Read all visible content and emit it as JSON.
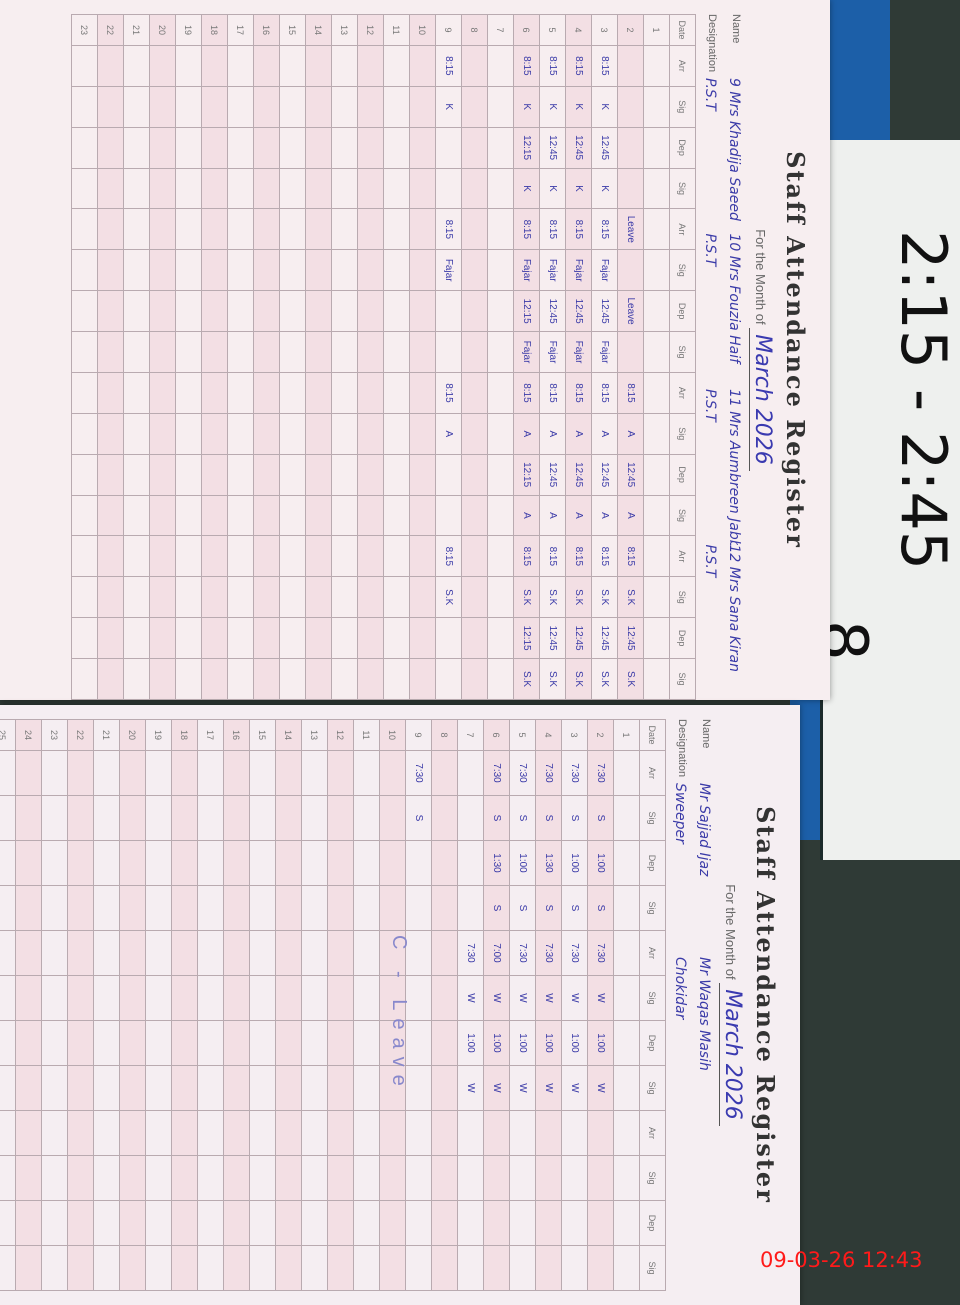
{
  "background_card": {
    "time_range": "2:15 - 2:45",
    "number": "8"
  },
  "timestamp": "09-03-26 12:43",
  "left_page": {
    "title": "Staff Attendance Register",
    "month_label": "For the Month of",
    "month_value": "March 2026",
    "name_label": "Name",
    "designation_label": "Designation",
    "staff": [
      {
        "no": "9",
        "name": "Mrs Khadija Saeed",
        "designation": "P.S.T"
      },
      {
        "no": "10",
        "name": "Mrs Fouzia Haif",
        "designation": "P.S.T"
      },
      {
        "no": "11",
        "name": "Mrs Aumbreen Jabbar",
        "designation": "P.S.T"
      },
      {
        "no": "12",
        "name": "Mrs Sana Kiran",
        "designation": "P.S.T"
      }
    ],
    "headers": [
      "Date",
      "Arr",
      "Sig",
      "Dep",
      "Sig",
      "Arr",
      "Sig",
      "Dep",
      "Sig",
      "Arr",
      "Sig",
      "Dep",
      "Sig",
      "Arr",
      "Sig",
      "Dep",
      "Sig"
    ],
    "rows": [
      {
        "date": "1",
        "cells": []
      },
      {
        "date": "2",
        "cells": [
          "",
          "",
          "",
          "",
          "Leave",
          "",
          "Leave",
          "",
          "8:15",
          "A",
          "12:45",
          "A",
          "8:15",
          "S.K",
          "12:45",
          "S.K"
        ]
      },
      {
        "date": "3",
        "cells": [
          "8:15",
          "K",
          "12:45",
          "K",
          "8:15",
          "Fajar",
          "12:45",
          "Fajar",
          "8:15",
          "A",
          "12:45",
          "A",
          "8:15",
          "S.K",
          "12:45",
          "S.K"
        ]
      },
      {
        "date": "4",
        "cells": [
          "8:15",
          "K",
          "12:45",
          "K",
          "8:15",
          "Fajar",
          "12:45",
          "Fajar",
          "8:15",
          "A",
          "12:45",
          "A",
          "8:15",
          "S.K",
          "12:45",
          "S.K"
        ]
      },
      {
        "date": "5",
        "cells": [
          "8:15",
          "K",
          "12:45",
          "K",
          "8:15",
          "Fajar",
          "12:45",
          "Fajar",
          "8:15",
          "A",
          "12:45",
          "A",
          "8:15",
          "S.K",
          "12:45",
          "S.K"
        ]
      },
      {
        "date": "6",
        "cells": [
          "8:15",
          "K",
          "12:15",
          "K",
          "8:15",
          "Fajar",
          "12:15",
          "Fajar",
          "8:15",
          "A",
          "12:15",
          "A",
          "8:15",
          "S.K",
          "12:15",
          "S.K"
        ]
      },
      {
        "date": "7",
        "cells": []
      },
      {
        "date": "8",
        "cells": []
      },
      {
        "date": "9",
        "cells": [
          "8:15",
          "K",
          "",
          "",
          "8:15",
          "Fajar",
          "",
          "",
          "8:15",
          "A",
          "",
          "",
          "8:15",
          "S.K",
          "",
          ""
        ]
      },
      {
        "date": "10",
        "cells": []
      },
      {
        "date": "11",
        "cells": []
      },
      {
        "date": "12",
        "cells": []
      },
      {
        "date": "13",
        "cells": []
      },
      {
        "date": "14",
        "cells": []
      },
      {
        "date": "15",
        "cells": []
      },
      {
        "date": "16",
        "cells": []
      },
      {
        "date": "17",
        "cells": []
      },
      {
        "date": "18",
        "cells": []
      },
      {
        "date": "19",
        "cells": []
      },
      {
        "date": "20",
        "cells": []
      },
      {
        "date": "21",
        "cells": []
      },
      {
        "date": "22",
        "cells": []
      },
      {
        "date": "23",
        "cells": []
      }
    ]
  },
  "right_page": {
    "title": "Staff Attendance Register",
    "month_label": "For the Month of",
    "month_value": "March 2026",
    "name_label": "Name",
    "designation_label": "Designation",
    "staff": [
      {
        "name": "Mr Sajjad Ijaz",
        "designation": "Sweeper"
      },
      {
        "name": "Mr Waqas Masih",
        "designation": "Chokidar"
      }
    ],
    "headers": [
      "Date",
      "Arr",
      "Sig",
      "Dep",
      "Sig",
      "Arr",
      "Sig",
      "Dep",
      "Sig",
      "Arr",
      "Sig",
      "Dep",
      "Sig"
    ],
    "rows": [
      {
        "date": "1",
        "cells": []
      },
      {
        "date": "2",
        "cells": [
          "7:30",
          "S",
          "1:00",
          "S",
          "7:30",
          "W",
          "1:00",
          "W"
        ]
      },
      {
        "date": "3",
        "cells": [
          "7:30",
          "S",
          "1:00",
          "S",
          "7:30",
          "W",
          "1:00",
          "W"
        ]
      },
      {
        "date": "4",
        "cells": [
          "7:30",
          "S",
          "1:30",
          "S",
          "7:30",
          "W",
          "1:00",
          "W"
        ]
      },
      {
        "date": "5",
        "cells": [
          "7:30",
          "S",
          "1:00",
          "S",
          "7:30",
          "W",
          "1:00",
          "W"
        ]
      },
      {
        "date": "6",
        "cells": [
          "7:30",
          "S",
          "1:30",
          "S",
          "7:00",
          "W",
          "1:00",
          "W"
        ]
      },
      {
        "date": "7",
        "cells": [
          "",
          "",
          "",
          "",
          "7:30",
          "W",
          "1:00",
          "W"
        ]
      },
      {
        "date": "8",
        "cells": []
      },
      {
        "date": "9",
        "cells": [
          "7:30",
          "S",
          "",
          "",
          "",
          "",
          "",
          ""
        ]
      },
      {
        "date": "10",
        "cells": []
      },
      {
        "date": "11",
        "cells": []
      },
      {
        "date": "12",
        "cells": []
      },
      {
        "date": "13",
        "cells": []
      },
      {
        "date": "14",
        "cells": []
      },
      {
        "date": "15",
        "cells": []
      },
      {
        "date": "16",
        "cells": []
      },
      {
        "date": "17",
        "cells": []
      },
      {
        "date": "18",
        "cells": []
      },
      {
        "date": "19",
        "cells": []
      },
      {
        "date": "20",
        "cells": []
      },
      {
        "date": "21",
        "cells": []
      },
      {
        "date": "22",
        "cells": []
      },
      {
        "date": "23",
        "cells": []
      },
      {
        "date": "24",
        "cells": []
      },
      {
        "date": "25",
        "cells": []
      }
    ],
    "note": "C - Leave"
  }
}
